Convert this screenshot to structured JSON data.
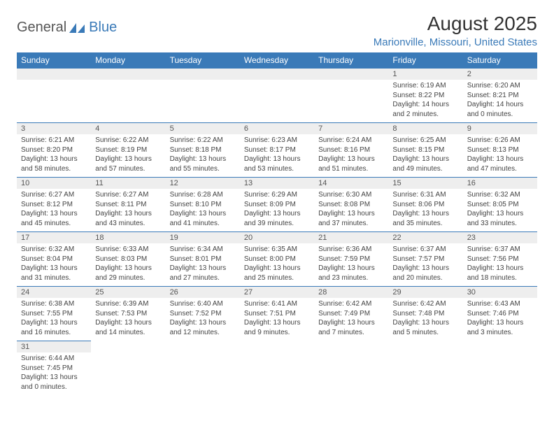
{
  "brand": {
    "text_general": "General",
    "text_blue": "Blue",
    "logo_color": "#3a7ab8"
  },
  "title": "August 2025",
  "location": "Marionville, Missouri, United States",
  "colors": {
    "header_bg": "#3a7ab8",
    "header_text": "#ffffff",
    "daynum_bg": "#eeeeee",
    "body_text": "#444444",
    "border": "#3a7ab8"
  },
  "weekdays": [
    "Sunday",
    "Monday",
    "Tuesday",
    "Wednesday",
    "Thursday",
    "Friday",
    "Saturday"
  ],
  "weeks": [
    [
      null,
      null,
      null,
      null,
      null,
      {
        "n": "1",
        "sr": "Sunrise: 6:19 AM",
        "ss": "Sunset: 8:22 PM",
        "dl": "Daylight: 14 hours and 2 minutes."
      },
      {
        "n": "2",
        "sr": "Sunrise: 6:20 AM",
        "ss": "Sunset: 8:21 PM",
        "dl": "Daylight: 14 hours and 0 minutes."
      }
    ],
    [
      {
        "n": "3",
        "sr": "Sunrise: 6:21 AM",
        "ss": "Sunset: 8:20 PM",
        "dl": "Daylight: 13 hours and 58 minutes."
      },
      {
        "n": "4",
        "sr": "Sunrise: 6:22 AM",
        "ss": "Sunset: 8:19 PM",
        "dl": "Daylight: 13 hours and 57 minutes."
      },
      {
        "n": "5",
        "sr": "Sunrise: 6:22 AM",
        "ss": "Sunset: 8:18 PM",
        "dl": "Daylight: 13 hours and 55 minutes."
      },
      {
        "n": "6",
        "sr": "Sunrise: 6:23 AM",
        "ss": "Sunset: 8:17 PM",
        "dl": "Daylight: 13 hours and 53 minutes."
      },
      {
        "n": "7",
        "sr": "Sunrise: 6:24 AM",
        "ss": "Sunset: 8:16 PM",
        "dl": "Daylight: 13 hours and 51 minutes."
      },
      {
        "n": "8",
        "sr": "Sunrise: 6:25 AM",
        "ss": "Sunset: 8:15 PM",
        "dl": "Daylight: 13 hours and 49 minutes."
      },
      {
        "n": "9",
        "sr": "Sunrise: 6:26 AM",
        "ss": "Sunset: 8:13 PM",
        "dl": "Daylight: 13 hours and 47 minutes."
      }
    ],
    [
      {
        "n": "10",
        "sr": "Sunrise: 6:27 AM",
        "ss": "Sunset: 8:12 PM",
        "dl": "Daylight: 13 hours and 45 minutes."
      },
      {
        "n": "11",
        "sr": "Sunrise: 6:27 AM",
        "ss": "Sunset: 8:11 PM",
        "dl": "Daylight: 13 hours and 43 minutes."
      },
      {
        "n": "12",
        "sr": "Sunrise: 6:28 AM",
        "ss": "Sunset: 8:10 PM",
        "dl": "Daylight: 13 hours and 41 minutes."
      },
      {
        "n": "13",
        "sr": "Sunrise: 6:29 AM",
        "ss": "Sunset: 8:09 PM",
        "dl": "Daylight: 13 hours and 39 minutes."
      },
      {
        "n": "14",
        "sr": "Sunrise: 6:30 AM",
        "ss": "Sunset: 8:08 PM",
        "dl": "Daylight: 13 hours and 37 minutes."
      },
      {
        "n": "15",
        "sr": "Sunrise: 6:31 AM",
        "ss": "Sunset: 8:06 PM",
        "dl": "Daylight: 13 hours and 35 minutes."
      },
      {
        "n": "16",
        "sr": "Sunrise: 6:32 AM",
        "ss": "Sunset: 8:05 PM",
        "dl": "Daylight: 13 hours and 33 minutes."
      }
    ],
    [
      {
        "n": "17",
        "sr": "Sunrise: 6:32 AM",
        "ss": "Sunset: 8:04 PM",
        "dl": "Daylight: 13 hours and 31 minutes."
      },
      {
        "n": "18",
        "sr": "Sunrise: 6:33 AM",
        "ss": "Sunset: 8:03 PM",
        "dl": "Daylight: 13 hours and 29 minutes."
      },
      {
        "n": "19",
        "sr": "Sunrise: 6:34 AM",
        "ss": "Sunset: 8:01 PM",
        "dl": "Daylight: 13 hours and 27 minutes."
      },
      {
        "n": "20",
        "sr": "Sunrise: 6:35 AM",
        "ss": "Sunset: 8:00 PM",
        "dl": "Daylight: 13 hours and 25 minutes."
      },
      {
        "n": "21",
        "sr": "Sunrise: 6:36 AM",
        "ss": "Sunset: 7:59 PM",
        "dl": "Daylight: 13 hours and 23 minutes."
      },
      {
        "n": "22",
        "sr": "Sunrise: 6:37 AM",
        "ss": "Sunset: 7:57 PM",
        "dl": "Daylight: 13 hours and 20 minutes."
      },
      {
        "n": "23",
        "sr": "Sunrise: 6:37 AM",
        "ss": "Sunset: 7:56 PM",
        "dl": "Daylight: 13 hours and 18 minutes."
      }
    ],
    [
      {
        "n": "24",
        "sr": "Sunrise: 6:38 AM",
        "ss": "Sunset: 7:55 PM",
        "dl": "Daylight: 13 hours and 16 minutes."
      },
      {
        "n": "25",
        "sr": "Sunrise: 6:39 AM",
        "ss": "Sunset: 7:53 PM",
        "dl": "Daylight: 13 hours and 14 minutes."
      },
      {
        "n": "26",
        "sr": "Sunrise: 6:40 AM",
        "ss": "Sunset: 7:52 PM",
        "dl": "Daylight: 13 hours and 12 minutes."
      },
      {
        "n": "27",
        "sr": "Sunrise: 6:41 AM",
        "ss": "Sunset: 7:51 PM",
        "dl": "Daylight: 13 hours and 9 minutes."
      },
      {
        "n": "28",
        "sr": "Sunrise: 6:42 AM",
        "ss": "Sunset: 7:49 PM",
        "dl": "Daylight: 13 hours and 7 minutes."
      },
      {
        "n": "29",
        "sr": "Sunrise: 6:42 AM",
        "ss": "Sunset: 7:48 PM",
        "dl": "Daylight: 13 hours and 5 minutes."
      },
      {
        "n": "30",
        "sr": "Sunrise: 6:43 AM",
        "ss": "Sunset: 7:46 PM",
        "dl": "Daylight: 13 hours and 3 minutes."
      }
    ],
    [
      {
        "n": "31",
        "sr": "Sunrise: 6:44 AM",
        "ss": "Sunset: 7:45 PM",
        "dl": "Daylight: 13 hours and 0 minutes."
      },
      null,
      null,
      null,
      null,
      null,
      null
    ]
  ]
}
